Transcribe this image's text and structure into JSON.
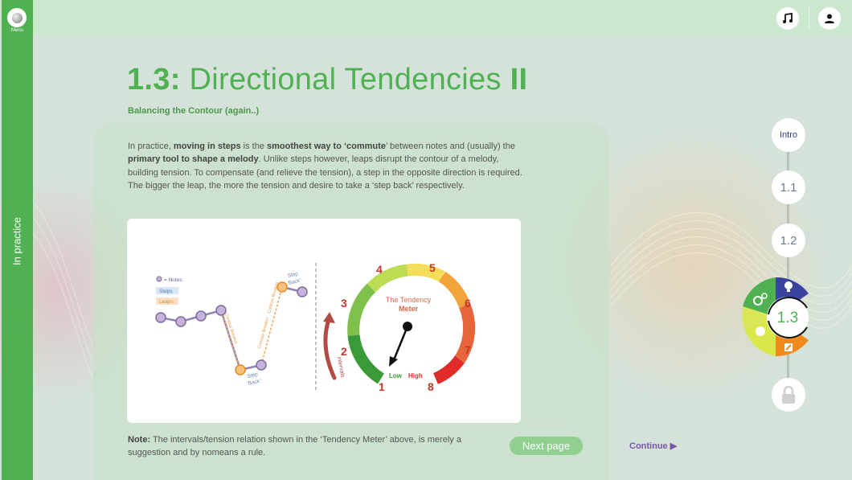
{
  "menu": {
    "label": "Menu"
  },
  "sidebar": {
    "label": "In practice"
  },
  "header": {
    "music_icon": "music-note-icon",
    "profile_icon": "user-icon"
  },
  "lesson": {
    "number": "1.3:",
    "title": "Directional Tendencies",
    "part": "II",
    "subtitle": "Balancing the Contour (again..)"
  },
  "paragraph": {
    "t1": "In practice, ",
    "b1": "moving in steps",
    "t2": " is the ",
    "b2": "smoothest way to ‘commute",
    "t3": "’ between notes and (usually) the ",
    "b3": "primary tool to shape a melody",
    "t4": ". Unlike steps however, leaps disrupt the contour of a melody, building tension. To compensate (and relieve the tension), a step in the opposite direction is required. The bigger the leap, the more the tension and desire to take a ‘step back’ respectively."
  },
  "figure": {
    "legend": {
      "notes": "= Notes",
      "steps": "Steps",
      "leaps": "Leaps"
    },
    "labels": {
      "step_back_bottom": "Step",
      "back_bottom": "'Back'",
      "step_back_top": "Step",
      "back_top": "'Back'",
      "contour_breaker_1": "Contour Breaker",
      "contour_breaker_2": "Contour Breaker",
      "contour_breaker_3": "Contour Breaker",
      "intervals": "intervals"
    },
    "meter": {
      "title_line1": "The Tendency",
      "title_line2": "Meter",
      "low": "Low",
      "high": "High",
      "numbers": [
        "1",
        "2",
        "3",
        "4",
        "5",
        "6",
        "7",
        "8"
      ]
    }
  },
  "note": {
    "label": "Note:",
    "text": " The intervals/tension relation shown in the ‘Tendency Meter’ above, is merely a suggestion and by nomeans a rule."
  },
  "buttons": {
    "next_page": "Next page",
    "continue": "Continue ▶"
  },
  "progress": {
    "nodes": [
      {
        "label": "Intro"
      },
      {
        "label": "1.1"
      },
      {
        "label": "1.2"
      },
      {
        "label": "1.3"
      }
    ],
    "current": "1.3",
    "locked_icon": "lock-icon"
  },
  "colors": {
    "brand_green": "#4fb152",
    "wheel_blue": "#3a44a0",
    "wheel_orange": "#f08a1f",
    "wheel_yellow": "#d8e84a",
    "wheel_green": "#4fb152",
    "continue_purple": "#7a56a8"
  }
}
